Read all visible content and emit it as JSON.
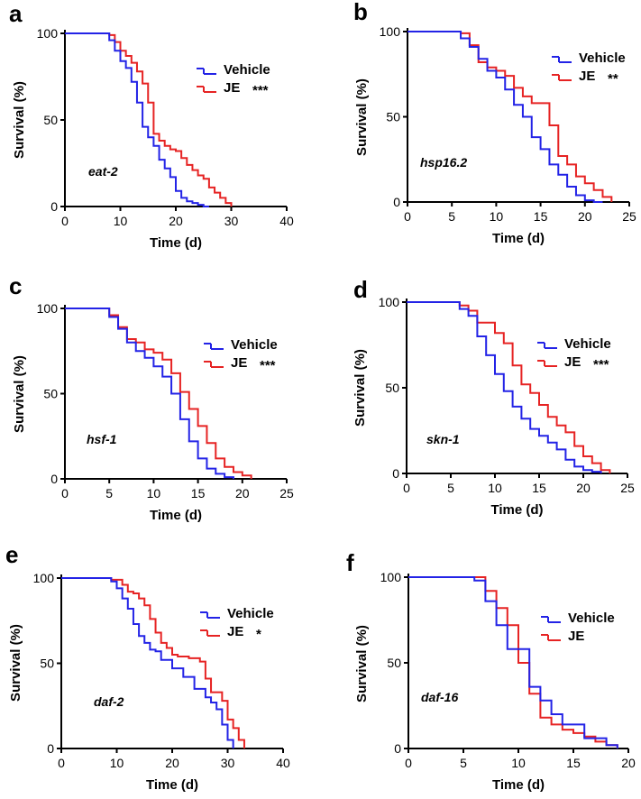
{
  "colors": {
    "vehicle": "#2323e6",
    "je": "#e62323"
  },
  "chart_data": [
    {
      "panel": "a",
      "type": "line",
      "strain": "eat-2",
      "xlabel": "Time (d)",
      "ylabel": "Survival (%)",
      "xlim": [
        0,
        40
      ],
      "ylim": [
        0,
        100
      ],
      "xticks": [
        0,
        10,
        20,
        30,
        40
      ],
      "yticks": [
        0,
        50,
        100
      ],
      "legend": [
        {
          "name": "Vehicle",
          "sig": ""
        },
        {
          "name": "JE",
          "sig": "***"
        }
      ],
      "series": [
        {
          "name": "Vehicle",
          "x": [
            0,
            8,
            9,
            10,
            11,
            12,
            13,
            14,
            15,
            16,
            17,
            18,
            19,
            20,
            21,
            22,
            23,
            24,
            25,
            26
          ],
          "y": [
            100,
            96,
            90,
            84,
            80,
            72,
            60,
            46,
            40,
            35,
            27,
            22,
            17,
            9,
            5,
            3,
            2,
            1,
            0,
            0
          ]
        },
        {
          "name": "JE",
          "x": [
            0,
            8,
            9,
            10,
            11,
            12,
            13,
            14,
            15,
            16,
            17,
            18,
            19,
            20,
            21,
            22,
            23,
            24,
            25,
            26,
            27,
            28,
            29,
            30
          ],
          "y": [
            100,
            99,
            95,
            90,
            87,
            83,
            78,
            71,
            60,
            42,
            38,
            35,
            33,
            32,
            28,
            24,
            21,
            18,
            16,
            11,
            8,
            5,
            2,
            0
          ]
        }
      ]
    },
    {
      "panel": "b",
      "type": "line",
      "strain": "hsp16.2",
      "xlabel": "Time (d)",
      "ylabel": "Survival (%)",
      "xlim": [
        0,
        25
      ],
      "ylim": [
        0,
        100
      ],
      "xticks": [
        0,
        5,
        10,
        15,
        20,
        25
      ],
      "yticks": [
        0,
        50,
        100
      ],
      "legend": [
        {
          "name": "Vehicle",
          "sig": ""
        },
        {
          "name": "JE",
          "sig": "**"
        }
      ],
      "series": [
        {
          "name": "Vehicle",
          "x": [
            0,
            6,
            7,
            8,
            9,
            10,
            11,
            12,
            13,
            14,
            15,
            16,
            17,
            18,
            19,
            20,
            21,
            22
          ],
          "y": [
            100,
            96,
            91,
            84,
            77,
            73,
            66,
            57,
            50,
            38,
            31,
            22,
            16,
            9,
            4,
            1,
            0,
            0
          ]
        },
        {
          "name": "JE",
          "x": [
            0,
            6,
            7,
            8,
            9,
            10,
            11,
            12,
            13,
            14,
            15,
            16,
            17,
            18,
            19,
            20,
            21,
            22,
            23
          ],
          "y": [
            100,
            99,
            92,
            82,
            79,
            77,
            74,
            67,
            62,
            58,
            58,
            45,
            27,
            22,
            15,
            11,
            7,
            3,
            0
          ]
        }
      ]
    },
    {
      "panel": "c",
      "type": "line",
      "strain": "hsf-1",
      "xlabel": "Time (d)",
      "ylabel": "Survival (%)",
      "xlim": [
        0,
        25
      ],
      "ylim": [
        0,
        100
      ],
      "xticks": [
        0,
        5,
        10,
        15,
        20,
        25
      ],
      "yticks": [
        0,
        50,
        100
      ],
      "legend": [
        {
          "name": "Vehicle",
          "sig": ""
        },
        {
          "name": "JE",
          "sig": "***"
        }
      ],
      "series": [
        {
          "name": "Vehicle",
          "x": [
            0,
            5,
            6,
            7,
            8,
            9,
            10,
            11,
            12,
            13,
            14,
            15,
            16,
            17,
            18,
            19
          ],
          "y": [
            100,
            95,
            88,
            80,
            75,
            71,
            66,
            60,
            50,
            35,
            22,
            12,
            6,
            3,
            1,
            0
          ]
        },
        {
          "name": "JE",
          "x": [
            0,
            5,
            6,
            7,
            8,
            9,
            10,
            11,
            12,
            13,
            14,
            15,
            16,
            17,
            18,
            19,
            20,
            21
          ],
          "y": [
            100,
            96,
            89,
            82,
            80,
            76,
            74,
            70,
            62,
            51,
            41,
            31,
            21,
            12,
            7,
            4,
            2,
            0
          ]
        }
      ]
    },
    {
      "panel": "d",
      "type": "line",
      "strain": "skn-1",
      "xlabel": "Time (d)",
      "ylabel": "Survival (%)",
      "xlim": [
        0,
        25
      ],
      "ylim": [
        0,
        100
      ],
      "xticks": [
        0,
        5,
        10,
        15,
        20,
        25
      ],
      "yticks": [
        0,
        50,
        100
      ],
      "legend": [
        {
          "name": "Vehicle",
          "sig": ""
        },
        {
          "name": "JE",
          "sig": "***"
        }
      ],
      "series": [
        {
          "name": "Vehicle",
          "x": [
            0,
            6,
            7,
            8,
            9,
            10,
            11,
            12,
            13,
            14,
            15,
            16,
            17,
            18,
            19,
            20,
            21,
            22
          ],
          "y": [
            100,
            96,
            92,
            80,
            69,
            58,
            48,
            39,
            32,
            26,
            22,
            18,
            14,
            8,
            4,
            2,
            1,
            0
          ]
        },
        {
          "name": "JE",
          "x": [
            0,
            6,
            7,
            8,
            9,
            10,
            11,
            12,
            13,
            14,
            15,
            16,
            17,
            18,
            19,
            20,
            21,
            22,
            23
          ],
          "y": [
            100,
            98,
            95,
            88,
            88,
            82,
            76,
            63,
            52,
            47,
            40,
            33,
            28,
            24,
            16,
            10,
            6,
            2,
            0
          ]
        }
      ]
    },
    {
      "panel": "e",
      "type": "line",
      "strain": "daf-2",
      "xlabel": "Time (d)",
      "ylabel": "Survival (%)",
      "xlim": [
        0,
        40
      ],
      "ylim": [
        0,
        100
      ],
      "xticks": [
        0,
        10,
        20,
        30,
        40
      ],
      "yticks": [
        0,
        50,
        100
      ],
      "legend": [
        {
          "name": "Vehicle",
          "sig": ""
        },
        {
          "name": "JE",
          "sig": "*"
        }
      ],
      "series": [
        {
          "name": "Vehicle",
          "x": [
            0,
            9,
            10,
            11,
            12,
            13,
            14,
            15,
            16,
            17,
            18,
            20,
            22,
            24,
            26,
            27,
            28,
            29,
            30,
            31
          ],
          "y": [
            100,
            98,
            94,
            88,
            82,
            73,
            66,
            62,
            58,
            57,
            52,
            47,
            42,
            35,
            30,
            27,
            23,
            14,
            5,
            0
          ]
        },
        {
          "name": "JE",
          "x": [
            0,
            9,
            11,
            12,
            13,
            14,
            15,
            16,
            17,
            18,
            19,
            20,
            21,
            23,
            25,
            26,
            27,
            29,
            30,
            31,
            32,
            33
          ],
          "y": [
            100,
            99,
            96,
            92,
            91,
            88,
            84,
            76,
            68,
            62,
            59,
            55,
            54,
            53,
            51,
            41,
            33,
            28,
            17,
            12,
            5,
            0
          ]
        }
      ]
    },
    {
      "panel": "f",
      "type": "line",
      "strain": "daf-16",
      "xlabel": "Time (d)",
      "ylabel": "Survival (%)",
      "xlim": [
        0,
        20
      ],
      "ylim": [
        0,
        100
      ],
      "xticks": [
        0,
        5,
        10,
        15,
        20
      ],
      "yticks": [
        0,
        50,
        100
      ],
      "legend": [
        {
          "name": "Vehicle",
          "sig": ""
        },
        {
          "name": "JE",
          "sig": ""
        }
      ],
      "series": [
        {
          "name": "Vehicle",
          "x": [
            0,
            6,
            7,
            8,
            9,
            10,
            11,
            12,
            13,
            14,
            16,
            18,
            19
          ],
          "y": [
            100,
            98,
            86,
            72,
            58,
            58,
            36,
            28,
            20,
            14,
            6,
            2,
            0
          ]
        },
        {
          "name": "JE",
          "x": [
            0,
            7,
            8,
            9,
            10,
            11,
            12,
            13,
            14,
            15,
            16,
            17,
            18,
            19
          ],
          "y": [
            100,
            92,
            82,
            72,
            50,
            32,
            18,
            14,
            11,
            9,
            7,
            4,
            2,
            0
          ]
        }
      ]
    }
  ]
}
